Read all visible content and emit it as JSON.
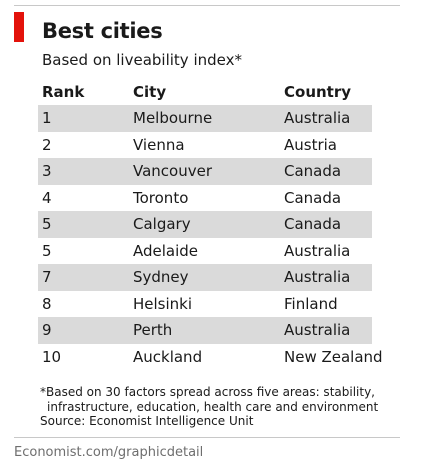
{
  "colors": {
    "accent": "#e3120b",
    "band": "#dadada",
    "credit": "#6e6e6e"
  },
  "header": {
    "title": "Best cities",
    "subtitle": "Based on liveability index*"
  },
  "chart_data": {
    "type": "table",
    "title": "Best cities",
    "subtitle": "Based on liveability index*",
    "columns": [
      "Rank",
      "City",
      "Country"
    ],
    "rows": [
      [
        "1",
        "Melbourne",
        "Australia"
      ],
      [
        "2",
        "Vienna",
        "Austria"
      ],
      [
        "3",
        "Vancouver",
        "Canada"
      ],
      [
        "4",
        "Toronto",
        "Canada"
      ],
      [
        "5",
        "Calgary",
        "Canada"
      ],
      [
        "5",
        "Adelaide",
        "Australia"
      ],
      [
        "7",
        "Sydney",
        "Australia"
      ],
      [
        "8",
        "Helsinki",
        "Finland"
      ],
      [
        "9",
        "Perth",
        "Australia"
      ],
      [
        "10",
        "Auckland",
        "New Zealand"
      ]
    ]
  },
  "footnote": {
    "line1": "*Based on 30 factors spread across five areas: stability,",
    "line2": "infrastructure, education, health care and environment",
    "source": "Source: Economist Intelligence Unit"
  },
  "credit": "Economist.com/graphicdetail"
}
